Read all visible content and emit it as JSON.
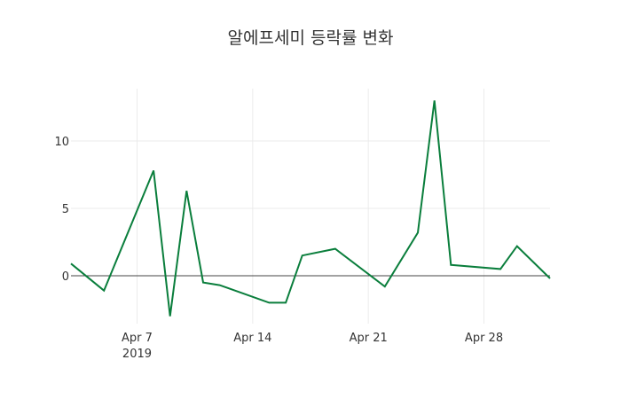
{
  "title": "알에프세미 등락률 변화",
  "chart_data": {
    "type": "line",
    "title": "알에프세미 등락률 변화",
    "xlabel": "",
    "ylabel": "",
    "x": [
      "2019-04-03",
      "2019-04-05",
      "2019-04-08",
      "2019-04-09",
      "2019-04-10",
      "2019-04-11",
      "2019-04-12",
      "2019-04-15",
      "2019-04-16",
      "2019-04-17",
      "2019-04-19",
      "2019-04-22",
      "2019-04-24",
      "2019-04-25",
      "2019-04-26",
      "2019-04-29",
      "2019-04-30",
      "2019-05-02"
    ],
    "series": [
      {
        "name": "등락률",
        "color": "#0a7e3c",
        "values": [
          0.9,
          -1.1,
          7.8,
          -3.0,
          6.3,
          -0.5,
          -0.7,
          -2.0,
          -2.0,
          1.5,
          2.0,
          -0.8,
          3.2,
          13.0,
          0.8,
          0.5,
          2.2,
          -0.2
        ]
      }
    ],
    "x_ticks": [
      {
        "label": "Apr 7",
        "sub": "2019",
        "date": "2019-04-07"
      },
      {
        "label": "Apr 14",
        "date": "2019-04-14"
      },
      {
        "label": "Apr 21",
        "date": "2019-04-21"
      },
      {
        "label": "Apr 28",
        "date": "2019-04-28"
      }
    ],
    "y_ticks": [
      0,
      5,
      10
    ],
    "ylim": [
      -3.6,
      13.7
    ],
    "xlim": [
      "2019-04-03",
      "2019-05-02"
    ],
    "grid": true,
    "zero_line": true
  }
}
